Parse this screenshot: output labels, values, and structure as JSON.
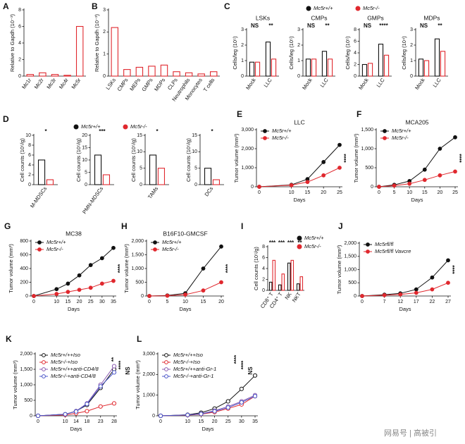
{
  "chart_data": [
    {
      "type": "bar",
      "panel": "A",
      "ylabel": "Relative to Gapdh (10⁻³)",
      "categories": [
        "Mc1r",
        "Mc2r",
        "Mc3r",
        "Mc4r",
        "Mc5r"
      ],
      "values": [
        0.2,
        0.4,
        0.2,
        0.1,
        6
      ],
      "color": "#e0282e",
      "ylim": [
        0,
        8
      ],
      "yticks": [
        0,
        2,
        4,
        6,
        8
      ]
    },
    {
      "type": "bar",
      "panel": "B",
      "ylabel": "Relative to Gapdh (10⁻³)",
      "categories": [
        "LSKs",
        "CMPs",
        "MEPs",
        "GMPs",
        "MDPs",
        "CLPs",
        "Neutrophils",
        "Monocytes",
        "T cells"
      ],
      "values": [
        2.2,
        0.3,
        0.4,
        0.45,
        0.5,
        0.2,
        0.15,
        0.1,
        0.2
      ],
      "color": "#e0282e",
      "ylim": [
        0,
        3
      ],
      "yticks": [
        0,
        1,
        2,
        3
      ]
    },
    {
      "type": "bar",
      "panel": "C",
      "title": "LSKs",
      "ylabel": "Cells/leg (10⁵)",
      "categories": [
        "Mock",
        "LLC"
      ],
      "series": [
        {
          "name": "Mc5r+/+",
          "color": "#111111",
          "values": [
            0.9,
            2.2
          ]
        },
        {
          "name": "Mc5r-/-",
          "color": "#e0282e",
          "values": [
            0.9,
            1.1
          ]
        }
      ],
      "ylim": [
        0,
        3
      ],
      "yticks": [
        0,
        1,
        2,
        3
      ],
      "annotations": [
        "NS",
        "**"
      ]
    },
    {
      "type": "bar",
      "title": "CMPs",
      "ylabel": "Cells/leg (10⁵)",
      "categories": [
        "Mock",
        "LLC"
      ],
      "series": [
        {
          "color": "#111111",
          "values": [
            1.1,
            1.6
          ]
        },
        {
          "color": "#e0282e",
          "values": [
            1.1,
            1.1
          ]
        }
      ],
      "ylim": [
        0,
        3
      ],
      "yticks": [
        0,
        1,
        2,
        3
      ],
      "annotations": [
        "NS",
        "**"
      ]
    },
    {
      "type": "bar",
      "title": "GMPs",
      "ylabel": "Cells/leg (10⁵)",
      "categories": [
        "Mock",
        "LLC"
      ],
      "series": [
        {
          "color": "#111111",
          "values": [
            2,
            5.5
          ]
        },
        {
          "color": "#e0282e",
          "values": [
            2.2,
            3.6
          ]
        }
      ],
      "ylim": [
        0,
        8
      ],
      "yticks": [
        0,
        2,
        4,
        6,
        8
      ],
      "annotations": [
        "NS",
        "****"
      ]
    },
    {
      "type": "bar",
      "title": "MDPs",
      "ylabel": "Cells/leg (10⁴)",
      "categories": [
        "Mock",
        "LLC"
      ],
      "series": [
        {
          "color": "#111111",
          "values": [
            1.1,
            2.4
          ]
        },
        {
          "color": "#e0282e",
          "values": [
            1.0,
            1.6
          ]
        }
      ],
      "ylim": [
        0,
        3
      ],
      "yticks": [
        0,
        1,
        2,
        3
      ],
      "annotations": [
        "NS",
        "**"
      ]
    },
    {
      "type": "bar",
      "panel": "D",
      "ylabel": "Cell counts (10⁵/g)",
      "categories": [
        "M-MDSCs"
      ],
      "series": [
        {
          "name": "Mc5r+/+",
          "color": "#111111",
          "values": [
            5
          ]
        },
        {
          "name": "Mc5r-/-",
          "color": "#e0282e",
          "values": [
            1
          ]
        }
      ],
      "ylim": [
        0,
        10
      ],
      "yticks": [
        0,
        2,
        4,
        6,
        8,
        10
      ],
      "annotations": [
        "*"
      ]
    },
    {
      "type": "bar",
      "ylabel": "Cell counts (10⁵/g)",
      "categories": [
        "PMN-MDSCs"
      ],
      "series": [
        {
          "color": "#111111",
          "values": [
            12
          ]
        },
        {
          "color": "#e0282e",
          "values": [
            4
          ]
        }
      ],
      "ylim": [
        0,
        20
      ],
      "yticks": [
        0,
        5,
        10,
        15,
        20
      ],
      "annotations": [
        "***"
      ]
    },
    {
      "type": "bar",
      "ylabel": "Cell counts (10⁵/g)",
      "categories": [
        "TAMs"
      ],
      "series": [
        {
          "color": "#111111",
          "values": [
            9
          ]
        },
        {
          "color": "#e0282e",
          "values": [
            5
          ]
        }
      ],
      "ylim": [
        0,
        15
      ],
      "yticks": [
        0,
        5,
        10,
        15
      ],
      "annotations": [
        "*"
      ]
    },
    {
      "type": "bar",
      "ylabel": "Cell counts (10⁵/g)",
      "categories": [
        "DCs"
      ],
      "series": [
        {
          "color": "#111111",
          "values": [
            5
          ]
        },
        {
          "color": "#e0282e",
          "values": [
            1.5
          ]
        }
      ],
      "ylim": [
        0,
        15
      ],
      "yticks": [
        0,
        5,
        10,
        15
      ],
      "annotations": [
        "*"
      ]
    },
    {
      "type": "line",
      "panel": "E",
      "title": "LLC",
      "xlabel": "Days",
      "ylabel": "Tumor volume (mm³)",
      "x": [
        0,
        10,
        15,
        20,
        25
      ],
      "xlim": [
        0,
        25
      ],
      "xticks": [
        0,
        10,
        15,
        20,
        25
      ],
      "ylim": [
        0,
        3000
      ],
      "yticks": [
        0,
        {
          "value": 1000,
          "label": "1,000"
        },
        {
          "value": 2000,
          "label": "2,000"
        },
        {
          "value": 3000,
          "label": "3,000"
        }
      ],
      "series": [
        {
          "name": "Mc5r+/+",
          "color": "#111111",
          "values": [
            0,
            100,
            400,
            1300,
            2200
          ]
        },
        {
          "name": "Mc5r-/-",
          "color": "#e0282e",
          "values": [
            0,
            80,
            250,
            600,
            1000
          ]
        }
      ],
      "annotations": [
        "****"
      ]
    },
    {
      "type": "line",
      "panel": "F",
      "title": "MCA205",
      "xlabel": "Days",
      "ylabel": "Tumor volume (mm³)",
      "x": [
        0,
        5,
        10,
        15,
        20,
        25
      ],
      "xlim": [
        0,
        25
      ],
      "xticks": [
        0,
        5,
        10,
        15,
        20,
        25
      ],
      "ylim": [
        0,
        1500
      ],
      "yticks": [
        0,
        500,
        {
          "value": 1000,
          "label": "1,000"
        },
        {
          "value": 1500,
          "label": "1,500"
        }
      ],
      "series": [
        {
          "name": "Mc5r+/+",
          "color": "#111111",
          "values": [
            0,
            50,
            150,
            450,
            1000,
            1300
          ]
        },
        {
          "name": "Mc5r-/-",
          "color": "#e0282e",
          "values": [
            0,
            30,
            80,
            180,
            300,
            400
          ]
        }
      ],
      "annotations": [
        "****"
      ]
    },
    {
      "type": "line",
      "panel": "G",
      "title": "MC38",
      "xlabel": "Days",
      "ylabel": "Tumor volume (mm³)",
      "x": [
        0,
        10,
        15,
        20,
        25,
        30,
        35
      ],
      "xlim": [
        0,
        35
      ],
      "xticks": [
        0,
        10,
        15,
        20,
        25,
        30,
        35
      ],
      "ylim": [
        0,
        800
      ],
      "yticks": [
        0,
        200,
        400,
        600,
        800
      ],
      "series": [
        {
          "name": "Mc5r+/+",
          "color": "#111111",
          "values": [
            0,
            100,
            180,
            300,
            450,
            550,
            700
          ]
        },
        {
          "name": "Mc5r-/-",
          "color": "#e0282e",
          "values": [
            0,
            30,
            60,
            90,
            120,
            180,
            220
          ]
        }
      ],
      "annotations": [
        "****"
      ]
    },
    {
      "type": "line",
      "panel": "H",
      "title": "B16F10-GMCSF",
      "xlabel": "Days",
      "ylabel": "Tumor volume (mm³)",
      "x": [
        0,
        5,
        10,
        15,
        20
      ],
      "xlim": [
        0,
        20
      ],
      "xticks": [
        0,
        5,
        10,
        15,
        20
      ],
      "ylim": [
        0,
        2000
      ],
      "yticks": [
        0,
        500,
        {
          "value": 1000,
          "label": "1,000"
        },
        {
          "value": 1500,
          "label": "1,500"
        },
        {
          "value": 2000,
          "label": "2,000"
        }
      ],
      "series": [
        {
          "name": "Mc5r+/+",
          "color": "#111111",
          "values": [
            0,
            20,
            100,
            1000,
            1800
          ]
        },
        {
          "name": "Mc5r-/-",
          "color": "#e0282e",
          "values": [
            0,
            10,
            50,
            200,
            500
          ]
        }
      ],
      "annotations": [
        "****"
      ]
    },
    {
      "type": "bar",
      "panel": "I",
      "ylabel": "Cell counts (10⁵/g)",
      "categories": [
        "CD8⁺ T",
        "CD4⁺ T",
        "NK",
        "NKT"
      ],
      "series": [
        {
          "name": "Mc5r+/+",
          "color": "#111111",
          "values": [
            1.5,
            1,
            5,
            1.2
          ]
        },
        {
          "name": "Mc5r-/-",
          "color": "#e0282e",
          "values": [
            5.5,
            3,
            5.5,
            2.5
          ]
        }
      ],
      "ylim": [
        0,
        8
      ],
      "yticks": [
        0,
        2,
        4,
        6,
        8
      ],
      "annotations": [
        "***",
        "***",
        "***",
        "**"
      ]
    },
    {
      "type": "line",
      "panel": "J",
      "xlabel": "Days",
      "ylabel": "Tumor volume (mm³)",
      "x": [
        0,
        7,
        12,
        17,
        22,
        27
      ],
      "xlim": [
        0,
        27
      ],
      "xticks": [
        0,
        7,
        12,
        17,
        22,
        27
      ],
      "ylim": [
        0,
        2000
      ],
      "yticks": [
        0,
        500,
        {
          "value": 1000,
          "label": "1,000"
        },
        {
          "value": 1500,
          "label": "1,500"
        },
        {
          "value": 2000,
          "label": "2,000"
        }
      ],
      "series": [
        {
          "name": "Mc5rfl/fl",
          "color": "#111111",
          "values": [
            0,
            50,
            100,
            250,
            700,
            1350
          ]
        },
        {
          "name": "Mc5rfl/fl Vavcre",
          "color": "#e0282e",
          "values": [
            0,
            30,
            60,
            120,
            250,
            500
          ]
        }
      ],
      "annotations": [
        "****"
      ]
    },
    {
      "type": "line",
      "panel": "K",
      "xlabel": "Days",
      "ylabel": "Tumor volume (mm³)",
      "x": [
        0,
        10,
        14,
        18,
        23,
        28
      ],
      "xlim": [
        0,
        28
      ],
      "xticks": [
        0,
        10,
        14,
        18,
        23,
        28
      ],
      "ylim": [
        0,
        2000
      ],
      "yticks": [
        0,
        500,
        {
          "value": 1000,
          "label": "1,000"
        },
        {
          "value": 1500,
          "label": "1,500"
        },
        {
          "value": 2000,
          "label": "2,000"
        }
      ],
      "marker": "open",
      "series": [
        {
          "name": "Mc5r+/++Iso",
          "color": "#111111",
          "values": [
            0,
            50,
            150,
            350,
            900,
            1500
          ]
        },
        {
          "name": "Mc5r-/-+Iso",
          "color": "#e0282e",
          "values": [
            0,
            30,
            80,
            150,
            300,
            400
          ]
        },
        {
          "name": "Mc5r+/++anti-CD4/8",
          "color": "#8a5ab0",
          "values": [
            0,
            50,
            150,
            400,
            1000,
            1600
          ]
        },
        {
          "name": "Mc5r-/-+anti-CD4/8",
          "color": "#4a55c8",
          "values": [
            0,
            50,
            140,
            380,
            950,
            1400
          ]
        }
      ],
      "annotations": [
        "**",
        "****",
        "NS"
      ]
    },
    {
      "type": "line",
      "panel": "L",
      "xlabel": "Days",
      "ylabel": "Tumor volume (mm³)",
      "x": [
        0,
        10,
        15,
        20,
        25,
        30,
        35
      ],
      "xlim": [
        0,
        35
      ],
      "xticks": [
        0,
        10,
        15,
        20,
        25,
        30,
        35
      ],
      "ylim": [
        0,
        3000
      ],
      "yticks": [
        0,
        {
          "value": 1000,
          "label": "1,000"
        },
        {
          "value": 2000,
          "label": "2,000"
        },
        {
          "value": 3000,
          "label": "3,000"
        }
      ],
      "marker": "open",
      "series": [
        {
          "name": "Mc5r+/++Iso",
          "color": "#111111",
          "values": [
            0,
            50,
            150,
            350,
            700,
            1300,
            1950
          ]
        },
        {
          "name": "Mc5r-/-+Iso",
          "color": "#e0282e",
          "values": [
            0,
            30,
            80,
            180,
            350,
            550,
            950
          ]
        },
        {
          "name": "Mc5r+/++anti-Gr-1",
          "color": "#8a5ab0",
          "values": [
            0,
            40,
            100,
            250,
            450,
            700,
            1000
          ]
        },
        {
          "name": "Mc5r-/-+anti-Gr-1",
          "color": "#4a55c8",
          "values": [
            0,
            40,
            90,
            220,
            400,
            650,
            950
          ]
        }
      ],
      "annotations": [
        "****",
        "****",
        "NS"
      ]
    }
  ],
  "watermark": "网易号 | 高被引"
}
